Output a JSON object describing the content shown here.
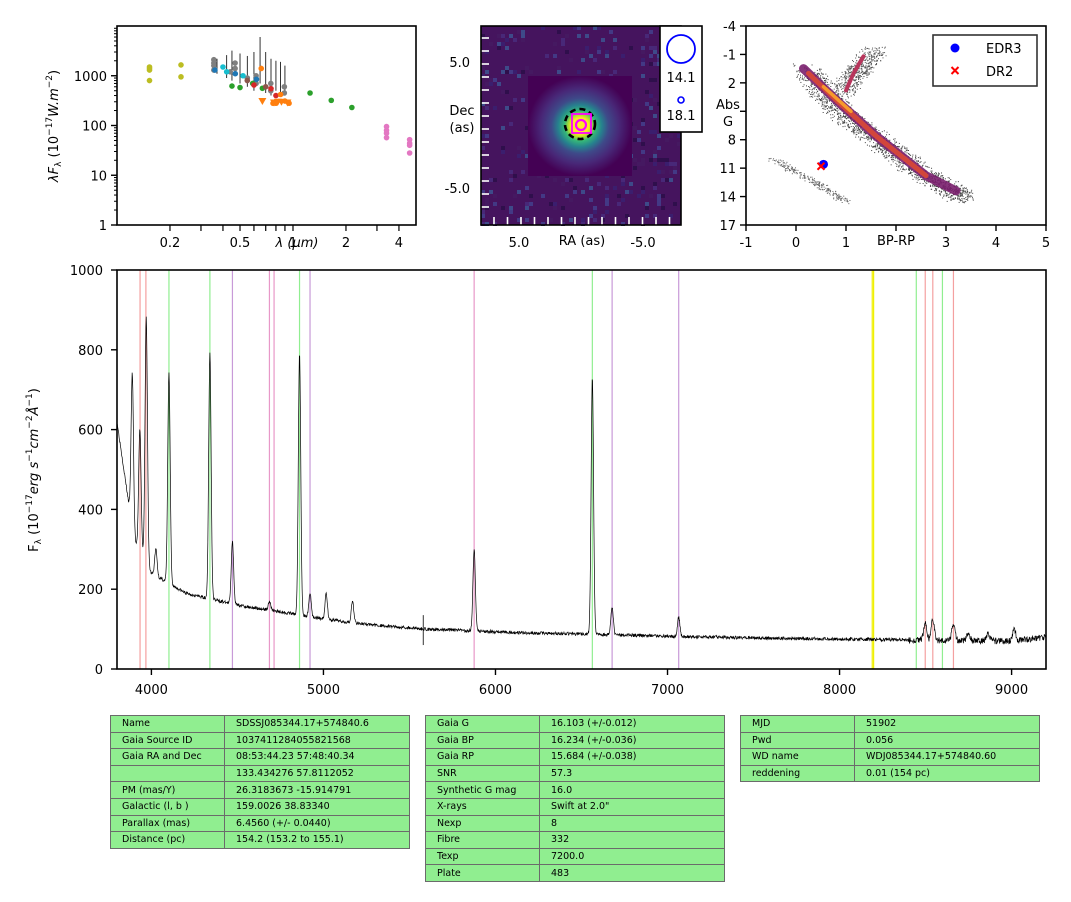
{
  "chart_data": [
    {
      "type": "scatter",
      "panel": "SED",
      "ylabel": "λF_λ (10^-17 W.m^-2)",
      "xlabel": "λ (μm)",
      "x_ticks": [
        "0.2",
        "0.5",
        "1",
        "2",
        "4"
      ],
      "y_ticks": [
        "1",
        "10",
        "100",
        "1000"
      ],
      "xscale": "log",
      "yscale": "log",
      "xlim": [
        0.1,
        5
      ],
      "ylim": [
        1,
        10000
      ],
      "series": [
        {
          "color": "#bcbd22",
          "x": [
            0.153,
            0.153,
            0.153,
            0.153,
            0.231,
            0.231
          ],
          "y": [
            1500,
            1400,
            1300,
            800,
            1650,
            950
          ]
        },
        {
          "color": "#7f7f7f",
          "x": [
            0.355,
            0.355,
            0.355,
            0.355,
            0.469,
            0.469,
            0.617,
            0.617,
            0.748,
            0.748,
            0.893,
            0.893,
            0.44,
            0.55
          ],
          "y": [
            2100,
            1800,
            1600,
            1300,
            1800,
            1400,
            1000,
            700,
            700,
            500,
            600,
            450,
            1200,
            900
          ]
        },
        {
          "color": "#1f77b4",
          "x": [
            0.36,
            0.47,
            0.62
          ],
          "y": [
            1300,
            1100,
            850
          ]
        },
        {
          "color": "#17becf",
          "x": [
            0.4,
            0.42,
            0.52
          ],
          "y": [
            1500,
            1200,
            1000
          ]
        },
        {
          "color": "#2ca02c",
          "x": [
            0.45,
            0.5,
            0.59,
            0.67,
            1.25,
            1.65,
            2.16
          ],
          "y": [
            620,
            580,
            700,
            560,
            450,
            320,
            230
          ]
        },
        {
          "color": "#d62728",
          "x": [
            0.6,
            0.75,
            0.8
          ],
          "y": [
            650,
            550,
            400
          ]
        },
        {
          "color": "#ff7f0e",
          "x": [
            0.66,
            0.77,
            0.8,
            0.85,
            0.9,
            0.95
          ],
          "y": [
            1400,
            280,
            280,
            420,
            310,
            280
          ]
        },
        {
          "color": "#8c564b",
          "x": [
            0.55,
            0.7
          ],
          "y": [
            800,
            600
          ]
        },
        {
          "color": "#e377c2",
          "x": [
            3.4,
            3.4,
            3.4,
            3.4,
            4.6,
            4.6,
            4.6,
            4.6
          ],
          "y": [
            95,
            80,
            70,
            57,
            52,
            44,
            40,
            28
          ]
        }
      ],
      "upper_limits": {
        "color": "#ff7f0e",
        "x": [
          0.67,
          0.78,
          0.82,
          0.86,
          0.93
        ],
        "y": [
          310,
          290,
          300,
          300,
          290
        ]
      }
    },
    {
      "type": "heatmap",
      "panel": "image",
      "xlabel": "RA (as)",
      "ylabel": "Dec\n(as)",
      "x_ticks": [
        "5.0",
        "-5.0"
      ],
      "y_ticks": [
        "5.0",
        "-5.0"
      ],
      "colormap": "viridis",
      "legend_entries": [
        "14.1",
        "18.1"
      ],
      "legend_color": "#0000ff",
      "marker_colors": [
        "#ff00ff",
        "#000000"
      ]
    },
    {
      "type": "scatter",
      "panel": "HR diagram",
      "xlabel": "BP-RP",
      "ylabel": "Abs\nG",
      "x_ticks": [
        "-1",
        "0",
        "1",
        "2",
        "3",
        "4",
        "5"
      ],
      "y_ticks": [
        "-4",
        "-1",
        "2",
        "5",
        "8",
        "11",
        "14",
        "17"
      ],
      "xlim": [
        -1,
        5
      ],
      "ylim": [
        17,
        -4
      ],
      "background": "Gaia HR density (inferno)",
      "series": [
        {
          "name": "EDR3",
          "color": "#0000ff",
          "marker": "circle",
          "x": [
            0.55
          ],
          "y": [
            10.6
          ]
        },
        {
          "name": "DR2",
          "color": "#ff0000",
          "marker": "x",
          "x": [
            0.5
          ],
          "y": [
            10.8
          ]
        }
      ],
      "legend_position": "top-right"
    },
    {
      "type": "line",
      "panel": "spectrum",
      "ylabel": "F_λ (10^-17 erg s^-1 cm^-2 Å^-1)",
      "x_ticks": [
        "4000",
        "5000",
        "6000",
        "7000",
        "8000",
        "9000"
      ],
      "y_ticks": [
        "0",
        "200",
        "400",
        "600",
        "800",
        "1000"
      ],
      "xlim": [
        3800,
        9200
      ],
      "ylim": [
        0,
        1000
      ],
      "continuum": {
        "x": [
          3800,
          3900,
          4000,
          4200,
          4500,
          4800,
          5000,
          5300,
          5600,
          5900,
          6200,
          6500,
          7000,
          7500,
          8000,
          8500,
          9000,
          9200
        ],
        "y": [
          620,
          320,
          240,
          190,
          160,
          140,
          125,
          110,
          100,
          95,
          90,
          88,
          82,
          78,
          75,
          72,
          70,
          80
        ]
      },
      "emission_lines": [
        {
          "x": 3889,
          "peak": 740
        },
        {
          "x": 3933,
          "peak": 600
        },
        {
          "x": 3970,
          "peak": 880
        },
        {
          "x": 4026,
          "peak": 300
        },
        {
          "x": 4102,
          "peak": 740
        },
        {
          "x": 4340,
          "peak": 790
        },
        {
          "x": 4471,
          "peak": 320
        },
        {
          "x": 4686,
          "peak": 170
        },
        {
          "x": 4861,
          "peak": 790
        },
        {
          "x": 4922,
          "peak": 190
        },
        {
          "x": 5016,
          "peak": 190
        },
        {
          "x": 5169,
          "peak": 170
        },
        {
          "x": 5876,
          "peak": 300
        },
        {
          "x": 6563,
          "peak": 730
        },
        {
          "x": 6678,
          "peak": 155
        },
        {
          "x": 7065,
          "peak": 130
        },
        {
          "x": 8498,
          "peak": 115
        },
        {
          "x": 8542,
          "peak": 125
        },
        {
          "x": 8662,
          "peak": 115
        },
        {
          "x": 8750,
          "peak": 90
        },
        {
          "x": 8863,
          "peak": 90
        },
        {
          "x": 9015,
          "peak": 100
        }
      ],
      "markers": [
        {
          "x": 3934,
          "color": "#f4a0a0"
        },
        {
          "x": 3968,
          "color": "#f4a0a0"
        },
        {
          "x": 4102,
          "color": "#90ee90"
        },
        {
          "x": 4340,
          "color": "#90ee90"
        },
        {
          "x": 4471,
          "color": "#c89ad8"
        },
        {
          "x": 4686,
          "color": "#e898c8"
        },
        {
          "x": 4713,
          "color": "#e898c8"
        },
        {
          "x": 4861,
          "color": "#90ee90"
        },
        {
          "x": 4922,
          "color": "#c89ad8"
        },
        {
          "x": 5876,
          "color": "#e898c8"
        },
        {
          "x": 6563,
          "color": "#90ee90"
        },
        {
          "x": 6678,
          "color": "#c89ad8"
        },
        {
          "x": 7065,
          "color": "#c89ad8"
        },
        {
          "x": 8190,
          "color": "#f0f000"
        },
        {
          "x": 8198,
          "color": "#f0f000"
        },
        {
          "x": 8446,
          "color": "#90ee90"
        },
        {
          "x": 8498,
          "color": "#f4a0a0"
        },
        {
          "x": 8542,
          "color": "#f4a0a0"
        },
        {
          "x": 8598,
          "color": "#90ee90"
        },
        {
          "x": 8662,
          "color": "#f4a0a0"
        }
      ]
    },
    {
      "type": "table",
      "panel": "info tables",
      "tables": [
        [
          [
            "Name",
            "SDSSJ085344.17+574840.6"
          ],
          [
            "Gaia Source ID",
            "1037411284055821568"
          ],
          [
            "Gaia RA and Dec",
            "08:53:44.23    57:48:40.34"
          ],
          [
            "",
            "133.434276    57.8112052"
          ],
          [
            "PM (mas/Y)",
            "26.3183673    -15.914791"
          ],
          [
            "Galactic (l, b )",
            "159.0026    38.83340"
          ],
          [
            "Parallax (mas)",
            "6.4560 (+/- 0.0440)"
          ],
          [
            "Distance (pc)",
            "154.2 (153.2 to 155.1)"
          ]
        ],
        [
          [
            "Gaia G",
            "16.103 (+/-0.012)"
          ],
          [
            "Gaia BP",
            "16.234 (+/-0.036)"
          ],
          [
            "Gaia RP",
            "15.684 (+/-0.038)"
          ],
          [
            "SNR",
            "57.3"
          ],
          [
            "Synthetic G mag",
            "16.0"
          ],
          [
            "X-rays",
            "Swift at 2.0\""
          ],
          [
            "Nexp",
            "8"
          ],
          [
            "Fibre",
            "332"
          ],
          [
            "Texp",
            "7200.0"
          ],
          [
            "Plate",
            "483"
          ]
        ],
        [
          [
            "MJD",
            "51902"
          ],
          [
            "Pwd",
            "0.056"
          ],
          [
            "WD name",
            "WDJ085344.17+574840.60"
          ],
          [
            "reddening",
            "0.01 (154 pc)"
          ]
        ]
      ]
    }
  ]
}
